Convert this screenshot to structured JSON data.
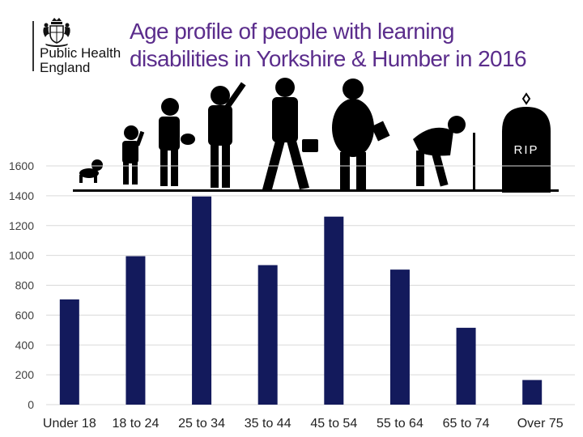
{
  "logo": {
    "lines": [
      "Public Health",
      "England"
    ],
    "icon": "royal-crest-icon"
  },
  "silhouettes": {
    "icon": "life-stages-silhouette-icon",
    "tombstone_text": "RIP"
  },
  "colors": {
    "title": "#5b2d8c",
    "bar": "#131a5c",
    "grid": "#d9d9d9",
    "tick_text": "#404040",
    "silhouette": "#000000"
  },
  "chart_data": {
    "type": "bar",
    "title": "Age profile of people with learning disabilities in Yorkshire & Humber in 2016",
    "title_lines": [
      "Age profile of people with learning",
      "disabilities in Yorkshire & Humber in 2016"
    ],
    "categories": [
      "Under 18",
      "18 to 24",
      "25 to 34",
      "35 to 44",
      "45 to 54",
      "55 to 64",
      "65 to 74",
      "Over 75"
    ],
    "values": [
      705,
      995,
      1395,
      935,
      1260,
      905,
      515,
      165
    ],
    "xlabel": "",
    "ylabel": "",
    "ylim": [
      0,
      1600
    ],
    "yticks": [
      0,
      200,
      400,
      600,
      800,
      1000,
      1200,
      1400,
      1600
    ],
    "grid": true,
    "legend": "none"
  }
}
